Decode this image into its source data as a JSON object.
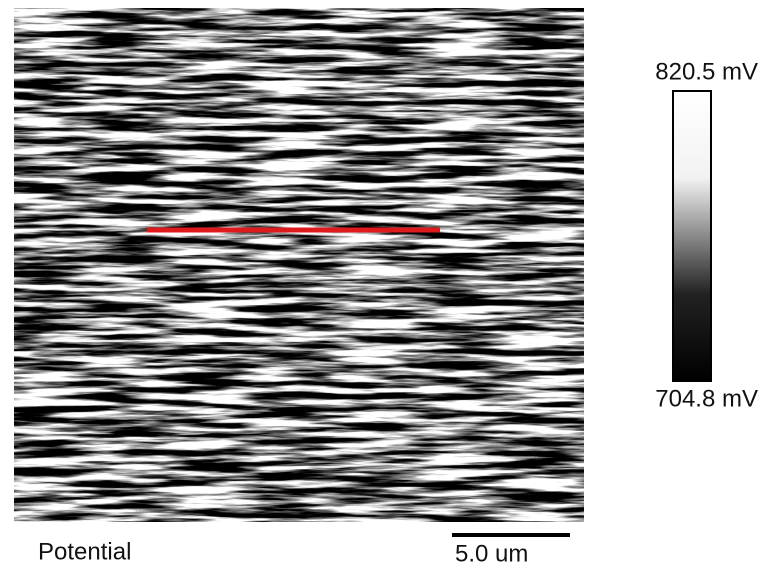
{
  "image": {
    "label": "Potential",
    "scale_bar": "5.0 um"
  },
  "colorbar": {
    "max_label": "820.5 mV",
    "min_label": "704.8 mV"
  }
}
